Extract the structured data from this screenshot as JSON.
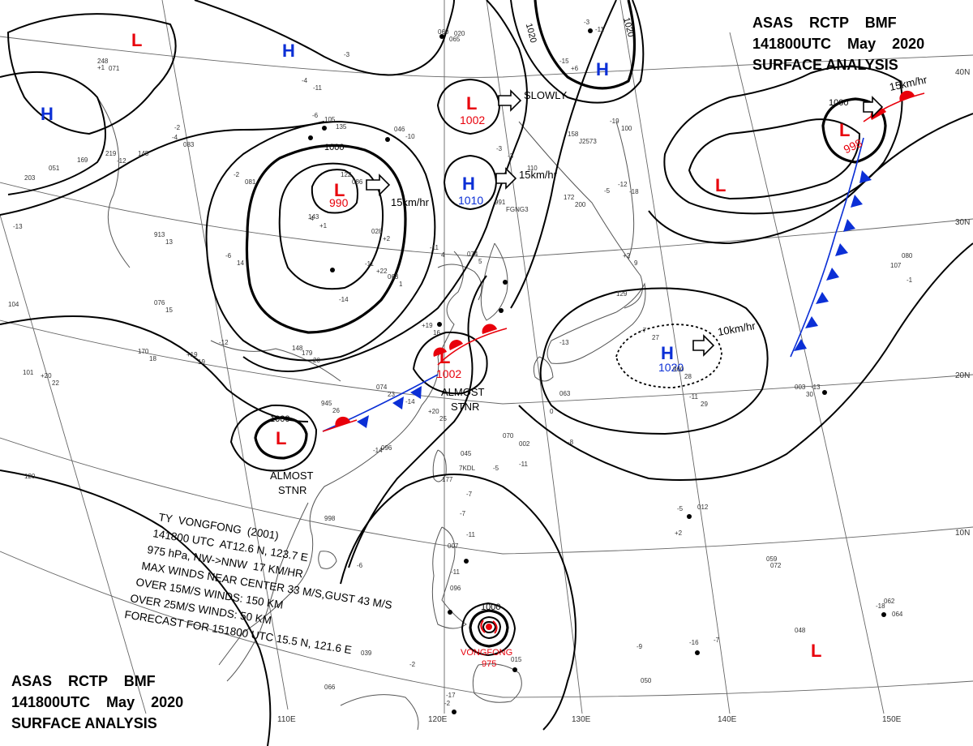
{
  "header_top": [
    "ASAS    RCTP    BMF",
    "141800UTC    May    2020",
    "SURFACE ANALYSIS"
  ],
  "header_bottom": [
    "ASAS    RCTP    BMF",
    "141800UTC    May    2020",
    "SURFACE ANALYSIS"
  ],
  "lat_labels": [
    "40N",
    "30N",
    "20N",
    "10N"
  ],
  "lon_labels": [
    "110E",
    "120E",
    "130E",
    "140E",
    "150E"
  ],
  "pressure_systems": [
    {
      "id": "low-nw-corner",
      "type": "L",
      "pressure": ""
    },
    {
      "id": "high-north",
      "type": "H",
      "pressure": ""
    },
    {
      "id": "high-west",
      "type": "H",
      "pressure": ""
    },
    {
      "id": "low-mongolia",
      "type": "L",
      "pressure": "990"
    },
    {
      "id": "low-yellow-sea",
      "type": "L",
      "pressure": "1002"
    },
    {
      "id": "high-east-china-sea",
      "type": "H",
      "pressure": "1010"
    },
    {
      "id": "high-sea-of-japan",
      "type": "H",
      "pressure": ""
    },
    {
      "id": "low-taiwan",
      "type": "L",
      "pressure": "1002"
    },
    {
      "id": "low-south-china",
      "type": "L",
      "pressure": ""
    },
    {
      "id": "high-pacific",
      "type": "H",
      "pressure": "1020"
    },
    {
      "id": "low-northeast",
      "type": "L",
      "pressure": "998"
    },
    {
      "id": "low-east",
      "type": "L",
      "pressure": ""
    },
    {
      "id": "low-southeast",
      "type": "L",
      "pressure": ""
    }
  ],
  "movement_labels": [
    "15km/hr",
    "SLOWLY",
    "15km/hr",
    "10km/hr",
    "15km/hr"
  ],
  "stationary_labels": [
    [
      "ALMOST",
      "STNR"
    ],
    [
      "ALMOST",
      "STNR"
    ]
  ],
  "isobar_labels": [
    "1000",
    "1020",
    "1020",
    "1000",
    "1000",
    "1000"
  ],
  "typhoon": {
    "name_label": "VONGFONG",
    "pressure_label": "975",
    "bulletin": [
      "TY  VONGFONG  (2001)",
      "141800 UTC  AT12.6 N, 123.7 E",
      "975 hPa, NW->NNW  17 KM/HR",
      "MAX WINDS NEAR CENTER 33 M/S,GUST 43 M/S",
      "OVER 15M/S WINDS: 150 KM",
      "OVER 25M/S WINDS: 50 KM",
      "FORECAST FOR 151800 UTC 15.5 N, 121.6 E"
    ]
  },
  "station_labels": [
    "060",
    "-3",
    "248",
    "-4",
    "105",
    "-15",
    "158",
    "-19",
    "046",
    "-4",
    "219",
    "-2",
    "122",
    "-3",
    "172",
    "-12",
    "991",
    "-4",
    "028",
    "-11",
    "063",
    "-11",
    "074",
    "+2",
    "913",
    "-6",
    "076",
    "+19",
    "170",
    "+19",
    "179",
    "+20",
    "074",
    "+20",
    "945",
    "-7",
    "960",
    "-11",
    "003",
    "0",
    "045",
    "-5",
    "002",
    "-8",
    "096",
    "-7",
    "177",
    "-7",
    "998",
    "-11",
    "007",
    "-11",
    "096",
    "-6",
    "039",
    "-2",
    "015",
    "-2",
    "012",
    "+2",
    "059",
    "-7",
    "050",
    "062",
    "080",
    "-1",
    "051",
    "203",
    "+1",
    "020",
    "-3",
    "169",
    "-2",
    "145",
    "-6",
    "143",
    "-13",
    "104",
    "-12",
    "110",
    "-5",
    "129",
    "-14",
    "148",
    "-13",
    "063",
    "-13",
    "107",
    "-14",
    "101",
    "-14",
    "7KDL",
    "070",
    "-11",
    "120",
    "-5",
    "072",
    "-16",
    "048",
    "-18",
    "064",
    "-9",
    "066",
    "-17",
    "065",
    "-11",
    "071",
    "-11",
    "135",
    "+6",
    "J2573",
    "100",
    "-10",
    "083",
    "-12",
    "081",
    "086",
    "-3",
    "200",
    "-18",
    "FGNG3",
    "+1",
    "+2",
    "+22",
    "1",
    "4",
    "5",
    "9",
    "13",
    "14",
    "15",
    "16",
    "18",
    "19",
    "20",
    "22",
    "23",
    "25",
    "26",
    "27",
    "28",
    "29",
    "30"
  ]
}
